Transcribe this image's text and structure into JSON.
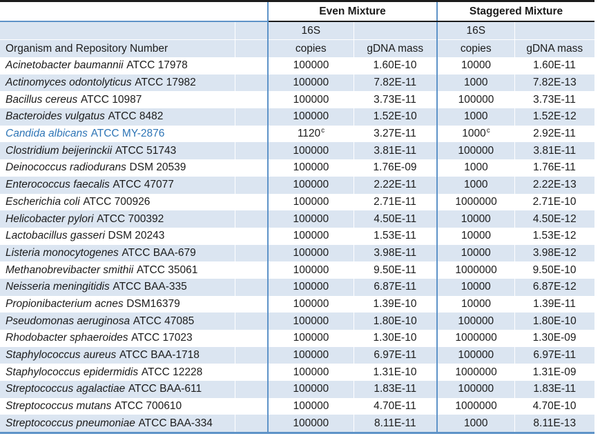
{
  "colors": {
    "stripe": "#DBE5F1",
    "blue_border": "#5E93C8",
    "dark_border": "#1C1C1C",
    "highlight_text": "#2E75B6",
    "text": "#1B1B1B",
    "white_grid": "#FFFFFF"
  },
  "table": {
    "sections": {
      "even": "Even Mixture",
      "staggered": "Staggered Mixture"
    },
    "headers": {
      "organism": "Organism and Repository Number",
      "copies_top": "16S",
      "copies_bottom": "copies",
      "gdna": "gDNA mass"
    },
    "rows": [
      {
        "name": "Acinetobacter baumannii",
        "strain": "ATCC 17978",
        "even_copies": "100000",
        "even_sup": "",
        "even_gdna": "1.60E-10",
        "stag_copies": "10000",
        "stag_sup": "",
        "stag_gdna": "1.60E-11",
        "highlight": false
      },
      {
        "name": "Actinomyces odontolyticus",
        "strain": "ATCC 17982",
        "even_copies": "100000",
        "even_sup": "",
        "even_gdna": "7.82E-11",
        "stag_copies": "1000",
        "stag_sup": "",
        "stag_gdna": "7.82E-13",
        "highlight": false
      },
      {
        "name": "Bacillus cereus",
        "strain": "ATCC 10987",
        "even_copies": "100000",
        "even_sup": "",
        "even_gdna": "3.73E-11",
        "stag_copies": "100000",
        "stag_sup": "",
        "stag_gdna": "3.73E-11",
        "highlight": false
      },
      {
        "name": "Bacteroides vulgatus",
        "strain": "ATCC 8482",
        "even_copies": "100000",
        "even_sup": "",
        "even_gdna": "1.52E-10",
        "stag_copies": "1000",
        "stag_sup": "",
        "stag_gdna": "1.52E-12",
        "highlight": false
      },
      {
        "name": "Candida albicans",
        "strain": "ATCC MY-2876",
        "even_copies": "1120",
        "even_sup": "c",
        "even_gdna": "3.27E-11",
        "stag_copies": "1000",
        "stag_sup": "c",
        "stag_gdna": "2.92E-11",
        "highlight": true
      },
      {
        "name": "Clostridium beijerinckii",
        "strain": "ATCC 51743",
        "even_copies": "100000",
        "even_sup": "",
        "even_gdna": "3.81E-11",
        "stag_copies": "100000",
        "stag_sup": "",
        "stag_gdna": "3.81E-11",
        "highlight": false
      },
      {
        "name": "Deinococcus radiodurans",
        "strain": "DSM 20539",
        "even_copies": "100000",
        "even_sup": "",
        "even_gdna": "1.76E-09",
        "stag_copies": "1000",
        "stag_sup": "",
        "stag_gdna": "1.76E-11",
        "highlight": false
      },
      {
        "name": "Enterococcus faecalis",
        "strain": "ATCC 47077",
        "even_copies": "100000",
        "even_sup": "",
        "even_gdna": "2.22E-11",
        "stag_copies": "1000",
        "stag_sup": "",
        "stag_gdna": "2.22E-13",
        "highlight": false
      },
      {
        "name": "Escherichia coli",
        "strain": "ATCC 700926",
        "even_copies": "100000",
        "even_sup": "",
        "even_gdna": "2.71E-11",
        "stag_copies": "1000000",
        "stag_sup": "",
        "stag_gdna": "2.71E-10",
        "highlight": false
      },
      {
        "name": "Helicobacter pylori",
        "strain": "ATCC 700392",
        "even_copies": "100000",
        "even_sup": "",
        "even_gdna": "4.50E-11",
        "stag_copies": "10000",
        "stag_sup": "",
        "stag_gdna": "4.50E-12",
        "highlight": false
      },
      {
        "name": "Lactobacillus gasseri",
        "strain": "DSM 20243",
        "even_copies": "100000",
        "even_sup": "",
        "even_gdna": "1.53E-11",
        "stag_copies": "10000",
        "stag_sup": "",
        "stag_gdna": "1.53E-12",
        "highlight": false
      },
      {
        "name": "Listeria monocytogenes",
        "strain": "ATCC BAA-679",
        "even_copies": "100000",
        "even_sup": "",
        "even_gdna": "3.98E-11",
        "stag_copies": "10000",
        "stag_sup": "",
        "stag_gdna": "3.98E-12",
        "highlight": false
      },
      {
        "name": "Methanobrevibacter smithii",
        "strain": "ATCC 35061",
        "even_copies": "100000",
        "even_sup": "",
        "even_gdna": "9.50E-11",
        "stag_copies": "1000000",
        "stag_sup": "",
        "stag_gdna": "9.50E-10",
        "highlight": false
      },
      {
        "name": "Neisseria meningitidis",
        "strain": "ATCC BAA-335",
        "even_copies": "100000",
        "even_sup": "",
        "even_gdna": "6.87E-11",
        "stag_copies": "10000",
        "stag_sup": "",
        "stag_gdna": "6.87E-12",
        "highlight": false
      },
      {
        "name": "Propionibacterium acnes",
        "strain": "DSM16379",
        "even_copies": "100000",
        "even_sup": "",
        "even_gdna": "1.39E-10",
        "stag_copies": "10000",
        "stag_sup": "",
        "stag_gdna": "1.39E-11",
        "highlight": false
      },
      {
        "name": "Pseudomonas aeruginosa",
        "strain": "ATCC 47085",
        "even_copies": "100000",
        "even_sup": "",
        "even_gdna": "1.80E-10",
        "stag_copies": "100000",
        "stag_sup": "",
        "stag_gdna": "1.80E-10",
        "highlight": false
      },
      {
        "name": "Rhodobacter sphaeroides",
        "strain": "ATCC 17023",
        "even_copies": "100000",
        "even_sup": "",
        "even_gdna": "1.30E-10",
        "stag_copies": "1000000",
        "stag_sup": "",
        "stag_gdna": "1.30E-09",
        "highlight": false
      },
      {
        "name": "Staphylococcus aureus",
        "strain": "ATCC BAA-1718",
        "even_copies": "100000",
        "even_sup": "",
        "even_gdna": "6.97E-11",
        "stag_copies": "100000",
        "stag_sup": "",
        "stag_gdna": "6.97E-11",
        "highlight": false
      },
      {
        "name": "Staphylococcus epidermidis",
        "strain": "ATCC 12228",
        "even_copies": "100000",
        "even_sup": "",
        "even_gdna": "1.31E-10",
        "stag_copies": "1000000",
        "stag_sup": "",
        "stag_gdna": "1.31E-09",
        "highlight": false
      },
      {
        "name": "Streptococcus agalactiae",
        "strain": "ATCC BAA-611",
        "even_copies": "100000",
        "even_sup": "",
        "even_gdna": "1.83E-11",
        "stag_copies": "100000",
        "stag_sup": "",
        "stag_gdna": "1.83E-11",
        "highlight": false
      },
      {
        "name": "Streptococcus mutans",
        "strain": "ATCC 700610",
        "even_copies": "100000",
        "even_sup": "",
        "even_gdna": "4.70E-11",
        "stag_copies": "1000000",
        "stag_sup": "",
        "stag_gdna": "4.70E-10",
        "highlight": false
      },
      {
        "name": "Streptococcus pneumoniae",
        "strain": "ATCC BAA-334",
        "even_copies": "100000",
        "even_sup": "",
        "even_gdna": "8.11E-11",
        "stag_copies": "1000",
        "stag_sup": "",
        "stag_gdna": "8.11E-13",
        "highlight": false
      }
    ]
  }
}
